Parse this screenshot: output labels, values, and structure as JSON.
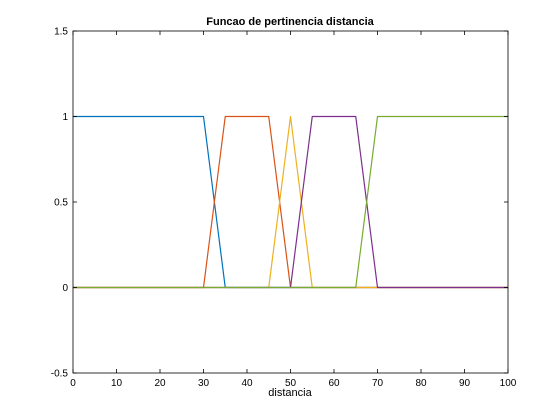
{
  "chart_data": {
    "type": "line",
    "title": "Funcao de pertinencia distancia",
    "xlabel": "distancia",
    "ylabel": "",
    "xlim": [
      0,
      100
    ],
    "ylim": [
      -0.5,
      1.5
    ],
    "xticks": [
      0,
      10,
      20,
      30,
      40,
      50,
      60,
      70,
      80,
      90,
      100
    ],
    "yticks": [
      -0.5,
      0,
      0.5,
      1,
      1.5
    ],
    "xtick_labels": [
      "0",
      "10",
      "20",
      "30",
      "40",
      "50",
      "60",
      "70",
      "80",
      "90",
      "100"
    ],
    "ytick_labels": [
      "-0.5",
      "0",
      "0.5",
      "1",
      "1.5"
    ],
    "grid": false,
    "legend": "none",
    "series": [
      {
        "color": "#0072BD",
        "x": [
          0,
          30,
          35,
          100
        ],
        "y": [
          1,
          1,
          0,
          0
        ]
      },
      {
        "color": "#D95319",
        "x": [
          0,
          30,
          35,
          45,
          50,
          100
        ],
        "y": [
          0,
          0,
          1,
          1,
          0,
          0
        ]
      },
      {
        "color": "#EDB120",
        "x": [
          0,
          45,
          50,
          55,
          100
        ],
        "y": [
          0,
          0,
          1,
          0,
          0
        ]
      },
      {
        "color": "#7E2F8E",
        "x": [
          0,
          50,
          55,
          65,
          70,
          100
        ],
        "y": [
          0,
          0,
          1,
          1,
          0,
          0
        ]
      },
      {
        "color": "#77AC30",
        "x": [
          0,
          65,
          70,
          100
        ],
        "y": [
          0,
          0,
          1,
          1
        ]
      }
    ]
  }
}
